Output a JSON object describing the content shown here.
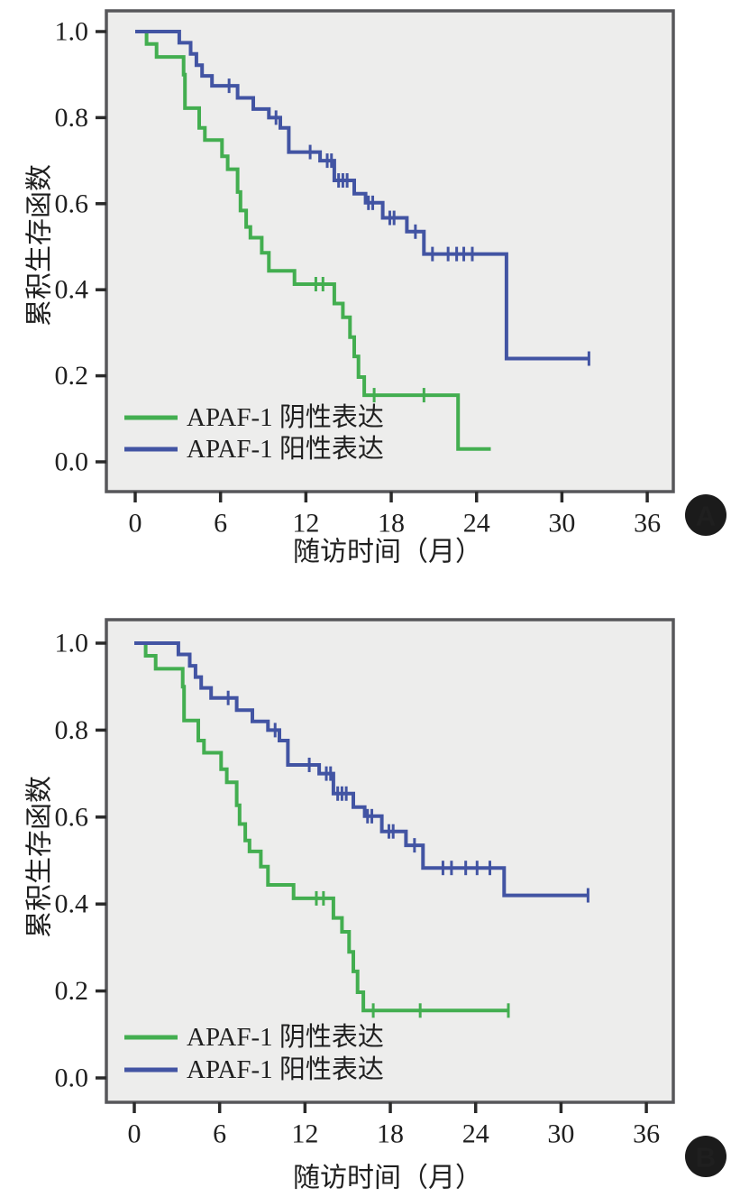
{
  "styles": {
    "plot_background": "#ededec",
    "plot_border": "#57575a",
    "tick_color": "#2a2a2a",
    "text_color": "#1f1f1f",
    "badge_background": "#1b1b1b",
    "badge_text": "#ffffff",
    "negative_color": "#43ae50",
    "positive_color": "#4254a3"
  },
  "chart_data": [
    {
      "type": "line",
      "subtype": "kaplan-meier-step",
      "panel_label": "A",
      "xlabel": "随访时间（月）",
      "ylabel": "累积生存函数",
      "x_ticks": [
        0,
        6,
        12,
        18,
        24,
        30,
        36
      ],
      "y_tick_labels": [
        "0.0",
        "0.2",
        "0.4",
        "0.6",
        "0.8",
        "1.0"
      ],
      "xlim": [
        0,
        38
      ],
      "ylim": [
        0,
        1.05
      ],
      "grid": false,
      "legend_position": "lower-left-inside",
      "series": [
        {
          "name": "APAF-1 阴性表达",
          "color": "#43ae50",
          "steps": [
            [
              0,
              1.0
            ],
            [
              0.8,
              0.971
            ],
            [
              1.5,
              0.941
            ],
            [
              3.4,
              0.9
            ],
            [
              3.5,
              0.822
            ],
            [
              4.5,
              0.776
            ],
            [
              4.9,
              0.748
            ],
            [
              6.1,
              0.71
            ],
            [
              6.5,
              0.68
            ],
            [
              7.2,
              0.627
            ],
            [
              7.4,
              0.584
            ],
            [
              7.8,
              0.546
            ],
            [
              8.1,
              0.521
            ],
            [
              8.9,
              0.486
            ],
            [
              9.4,
              0.444
            ],
            [
              11.2,
              0.413
            ],
            [
              14.0,
              0.368
            ],
            [
              14.6,
              0.336
            ],
            [
              15.1,
              0.29
            ],
            [
              15.4,
              0.245
            ],
            [
              15.7,
              0.197
            ],
            [
              16.1,
              0.155
            ],
            [
              22.7,
              0.03
            ]
          ],
          "end_x": 25.0,
          "censors": [
            [
              12.7,
              0.413
            ],
            [
              13.2,
              0.413
            ],
            [
              16.8,
              0.155
            ],
            [
              20.3,
              0.155
            ]
          ]
        },
        {
          "name": "APAF-1 阳性表达",
          "color": "#4254a3",
          "steps": [
            [
              0,
              1.0
            ],
            [
              3.1,
              0.974
            ],
            [
              3.9,
              0.948
            ],
            [
              4.3,
              0.922
            ],
            [
              4.7,
              0.897
            ],
            [
              5.4,
              0.874
            ],
            [
              7.2,
              0.846
            ],
            [
              8.3,
              0.82
            ],
            [
              9.4,
              0.8
            ],
            [
              10.2,
              0.776
            ],
            [
              10.8,
              0.72
            ],
            [
              13.0,
              0.7
            ],
            [
              14.0,
              0.654
            ],
            [
              15.4,
              0.623
            ],
            [
              16.2,
              0.602
            ],
            [
              17.4,
              0.567
            ],
            [
              19.1,
              0.535
            ],
            [
              20.3,
              0.483
            ],
            [
              26.1,
              0.24
            ]
          ],
          "end_x": 31.9,
          "censors": [
            [
              6.6,
              0.874
            ],
            [
              9.9,
              0.8
            ],
            [
              12.3,
              0.72
            ],
            [
              13.5,
              0.7
            ],
            [
              13.8,
              0.7
            ],
            [
              14.3,
              0.654
            ],
            [
              14.6,
              0.654
            ],
            [
              14.9,
              0.654
            ],
            [
              16.4,
              0.602
            ],
            [
              16.7,
              0.602
            ],
            [
              17.9,
              0.567
            ],
            [
              18.2,
              0.567
            ],
            [
              19.7,
              0.535
            ],
            [
              20.9,
              0.483
            ],
            [
              22.0,
              0.483
            ],
            [
              22.6,
              0.483
            ],
            [
              23.1,
              0.483
            ],
            [
              23.7,
              0.483
            ],
            [
              31.9,
              0.24
            ]
          ]
        }
      ]
    },
    {
      "type": "line",
      "subtype": "kaplan-meier-step",
      "panel_label": "B",
      "xlabel": "随访时间（月）",
      "ylabel": "累积生存函数",
      "x_ticks": [
        0,
        6,
        12,
        18,
        24,
        30,
        36
      ],
      "y_tick_labels": [
        "0.0",
        "0.2",
        "0.4",
        "0.6",
        "0.8",
        "1.0"
      ],
      "xlim": [
        0,
        38
      ],
      "ylim": [
        0,
        1.05
      ],
      "grid": false,
      "legend_position": "lower-left-inside",
      "series": [
        {
          "name": "APAF-1 阴性表达",
          "color": "#43ae50",
          "steps": [
            [
              0,
              1.0
            ],
            [
              0.8,
              0.971
            ],
            [
              1.5,
              0.941
            ],
            [
              3.4,
              0.9
            ],
            [
              3.5,
              0.822
            ],
            [
              4.5,
              0.776
            ],
            [
              4.9,
              0.748
            ],
            [
              6.1,
              0.71
            ],
            [
              6.5,
              0.68
            ],
            [
              7.2,
              0.627
            ],
            [
              7.4,
              0.584
            ],
            [
              7.8,
              0.546
            ],
            [
              8.1,
              0.521
            ],
            [
              8.9,
              0.486
            ],
            [
              9.4,
              0.444
            ],
            [
              11.2,
              0.413
            ],
            [
              14.0,
              0.368
            ],
            [
              14.6,
              0.336
            ],
            [
              15.1,
              0.29
            ],
            [
              15.4,
              0.245
            ],
            [
              15.7,
              0.197
            ],
            [
              16.1,
              0.155
            ]
          ],
          "end_x": 26.3,
          "censors": [
            [
              12.8,
              0.413
            ],
            [
              13.3,
              0.413
            ],
            [
              16.8,
              0.155
            ],
            [
              20.1,
              0.155
            ],
            [
              26.3,
              0.155
            ]
          ]
        },
        {
          "name": "APAF-1 阳性表达",
          "color": "#4254a3",
          "steps": [
            [
              0,
              1.0
            ],
            [
              3.1,
              0.974
            ],
            [
              3.9,
              0.948
            ],
            [
              4.3,
              0.922
            ],
            [
              4.7,
              0.897
            ],
            [
              5.4,
              0.874
            ],
            [
              7.2,
              0.846
            ],
            [
              8.3,
              0.82
            ],
            [
              9.4,
              0.8
            ],
            [
              10.2,
              0.776
            ],
            [
              10.8,
              0.72
            ],
            [
              13.0,
              0.7
            ],
            [
              14.0,
              0.654
            ],
            [
              15.4,
              0.623
            ],
            [
              16.2,
              0.602
            ],
            [
              17.4,
              0.567
            ],
            [
              19.1,
              0.535
            ],
            [
              20.3,
              0.483
            ],
            [
              26.0,
              0.42
            ]
          ],
          "end_x": 31.9,
          "censors": [
            [
              6.6,
              0.874
            ],
            [
              9.9,
              0.8
            ],
            [
              12.3,
              0.72
            ],
            [
              13.5,
              0.7
            ],
            [
              13.8,
              0.7
            ],
            [
              14.3,
              0.654
            ],
            [
              14.6,
              0.654
            ],
            [
              14.9,
              0.654
            ],
            [
              16.4,
              0.602
            ],
            [
              16.7,
              0.602
            ],
            [
              17.9,
              0.567
            ],
            [
              18.2,
              0.567
            ],
            [
              19.7,
              0.535
            ],
            [
              21.7,
              0.483
            ],
            [
              22.3,
              0.483
            ],
            [
              23.3,
              0.483
            ],
            [
              24.1,
              0.483
            ],
            [
              25.0,
              0.483
            ],
            [
              31.9,
              0.42
            ]
          ]
        }
      ]
    }
  ]
}
